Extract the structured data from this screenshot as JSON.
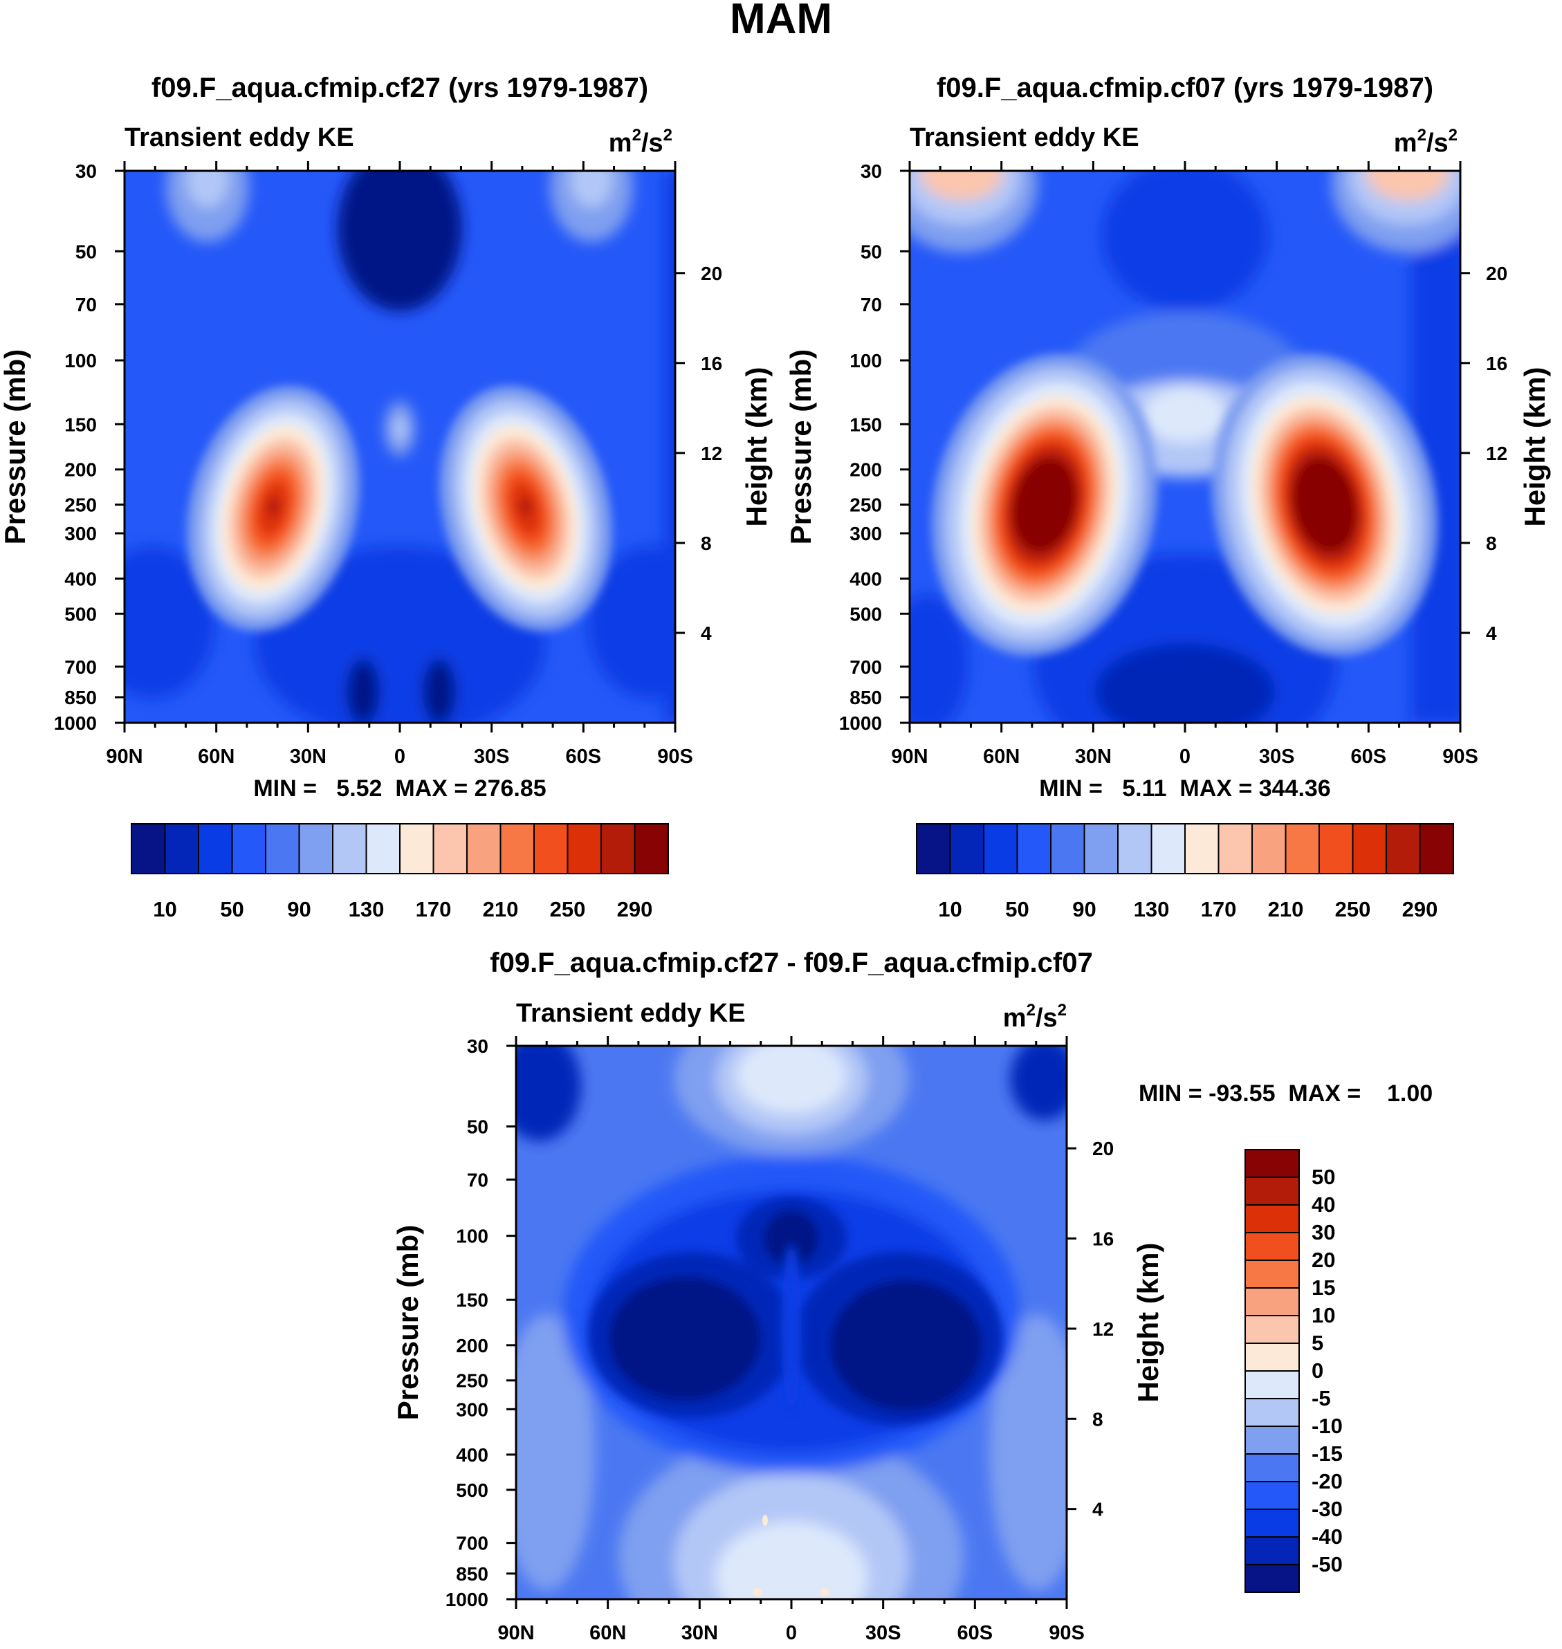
{
  "page_title": "MAM",
  "chart_data": [
    {
      "id": "panel1",
      "type": "contour",
      "title": "f09.F_aqua.cfmip.cf27 (yrs 1979-1987)",
      "variable": "Transient eddy KE",
      "units_base": "m",
      "units_exp1": "2",
      "units_mid": "/s",
      "units_exp2": "2",
      "xlabel": "",
      "ylabel": "Pressure (mb)",
      "y2label": "Height (km)",
      "x_ticks": [
        "90N",
        "60N",
        "30N",
        "0",
        "30S",
        "60S",
        "90S"
      ],
      "y_ticks": [
        "30",
        "50",
        "70",
        "100",
        "150",
        "200",
        "250",
        "300",
        "400",
        "500",
        "700",
        "850",
        "1000"
      ],
      "y2_ticks": [
        "20",
        "16",
        "12",
        "8",
        "4"
      ],
      "stats": "MIN =   5.52  MAX = 276.85",
      "min": 5.52,
      "max": 276.85,
      "colorbar_labels": [
        "10",
        "50",
        "90",
        "130",
        "170",
        "210",
        "250",
        "290"
      ],
      "features": [
        {
          "lat": -40,
          "p": 260,
          "value": 276.85,
          "kind": "max"
        },
        {
          "lat": 40,
          "p": 260,
          "value": 276.85,
          "kind": "max"
        },
        {
          "lat": 0,
          "p": 150,
          "value": 110,
          "kind": "local"
        }
      ]
    },
    {
      "id": "panel2",
      "type": "contour",
      "title": "f09.F_aqua.cfmip.cf07 (yrs 1979-1987)",
      "variable": "Transient eddy KE",
      "units_base": "m",
      "units_exp1": "2",
      "units_mid": "/s",
      "units_exp2": "2",
      "xlabel": "",
      "ylabel": "Pressure (mb)",
      "y2label": "Height (km)",
      "x_ticks": [
        "90N",
        "60N",
        "30N",
        "0",
        "30S",
        "60S",
        "90S"
      ],
      "y_ticks": [
        "30",
        "50",
        "70",
        "100",
        "150",
        "200",
        "250",
        "300",
        "400",
        "500",
        "700",
        "850",
        "1000"
      ],
      "y2_ticks": [
        "20",
        "16",
        "12",
        "8",
        "4"
      ],
      "stats": "MIN =   5.11  MAX = 344.36",
      "min": 5.11,
      "max": 344.36,
      "colorbar_labels": [
        "10",
        "50",
        "90",
        "130",
        "170",
        "210",
        "250",
        "290"
      ],
      "features": [
        {
          "lat": -45,
          "p": 260,
          "value": 344.36,
          "kind": "max"
        },
        {
          "lat": 45,
          "p": 260,
          "value": 344.36,
          "kind": "max"
        }
      ]
    },
    {
      "id": "panel3",
      "type": "contour",
      "title": "f09.F_aqua.cfmip.cf27 - f09.F_aqua.cfmip.cf07",
      "variable": "Transient eddy KE",
      "units_base": "m",
      "units_exp1": "2",
      "units_mid": "/s",
      "units_exp2": "2",
      "xlabel": "",
      "ylabel": "Pressure (mb)",
      "y2label": "Height (km)",
      "x_ticks": [
        "90N",
        "60N",
        "30N",
        "0",
        "30S",
        "60S",
        "90S"
      ],
      "y_ticks": [
        "30",
        "50",
        "70",
        "100",
        "150",
        "200",
        "250",
        "300",
        "400",
        "500",
        "700",
        "850",
        "1000"
      ],
      "y2_ticks": [
        "20",
        "16",
        "12",
        "8",
        "4"
      ],
      "stats": "MIN = -93.55  MAX =    1.00",
      "min": -93.55,
      "max": 1.0,
      "colorbar_labels": [
        "50",
        "40",
        "30",
        "20",
        "15",
        "10",
        "5",
        "0",
        "-5",
        "-10",
        "-15",
        "-20",
        "-30",
        "-40",
        "-50"
      ]
    }
  ],
  "colors": {
    "abs_scale": [
      "#061487",
      "#0426b8",
      "#0a3ce6",
      "#2458f8",
      "#4b78f2",
      "#7f9ff0",
      "#b3c7f7",
      "#dde8fb",
      "#fde9d7",
      "#fbc6ad",
      "#f9a27f",
      "#f87845",
      "#f24f1f",
      "#dc3108",
      "#b41c0a",
      "#880404"
    ],
    "diff_scale": [
      "#880404",
      "#b41c0a",
      "#dc3108",
      "#f24f1f",
      "#f87845",
      "#f9a27f",
      "#fbc6ad",
      "#fde9d7",
      "#dde8fb",
      "#b3c7f7",
      "#7f9ff0",
      "#4b78f2",
      "#2458f8",
      "#0a3ce6",
      "#0426b8",
      "#061487"
    ]
  }
}
